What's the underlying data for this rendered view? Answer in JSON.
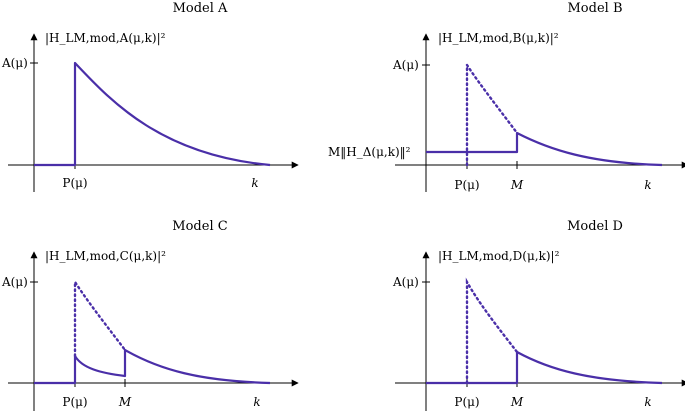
{
  "panels": [
    {
      "id": "A",
      "title": "Model A",
      "ylabel": "|H_LM,mod,A(μ,k)|²",
      "ytick": "A(μ)",
      "xtick_p": "P(μ)",
      "xaxis": "k"
    },
    {
      "id": "B",
      "title": "Model B",
      "ylabel": "|H_LM,mod,B(μ,k)|²",
      "ytick": "A(μ)",
      "ytick2": "M‖H_Δ(μ,k)‖²",
      "xtick_p": "P(μ)",
      "xtick_m": "M",
      "xaxis": "k"
    },
    {
      "id": "C",
      "title": "Model C",
      "ylabel": "|H_LM,mod,C(μ,k)|²",
      "ytick": "A(μ)",
      "xtick_p": "P(μ)",
      "xtick_m": "M",
      "xaxis": "k"
    },
    {
      "id": "D",
      "title": "Model D",
      "ylabel": "|H_LM,mod,D(μ,k)|²",
      "ytick": "A(μ)",
      "xtick_p": "P(μ)",
      "xtick_m": "M",
      "xaxis": "k"
    }
  ],
  "colors": {
    "curve": "#4a2fa8",
    "axis": "#000000"
  }
}
